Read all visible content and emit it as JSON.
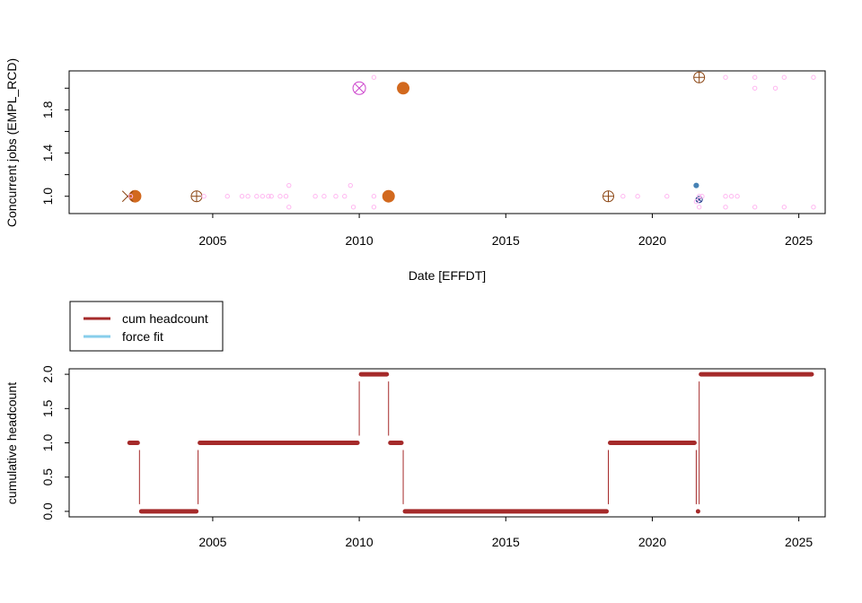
{
  "colors": {
    "orange": "#D2691E",
    "dark_orange": "#8B4513",
    "magenta": "#CC44CC",
    "pink": "#FFB6F0",
    "steel_blue": "#4682B4",
    "navy": "#1F3A8A",
    "brown": "#A52A2A",
    "sky_blue": "#87CEEB"
  },
  "chart_data": [
    {
      "type": "scatter",
      "title": "",
      "xlabel": "Date [EFFDT]",
      "ylabel": "Concurrent jobs (EMPL_RCD)",
      "xlim": [
        2000.1,
        2025.9
      ],
      "ylim": [
        0.84,
        2.16
      ],
      "xticks": [
        2005,
        2010,
        2015,
        2020,
        2025
      ],
      "xtick_labels": [
        "2005",
        "2010",
        "2015",
        "2020",
        "2025"
      ],
      "yticks": [
        1.0,
        1.2,
        1.4,
        1.6,
        1.8,
        2.0
      ],
      "ytick_labels": [
        "1.0",
        "",
        "1.4",
        "",
        "1.8",
        ""
      ],
      "series": [
        {
          "name": "orange filled circles",
          "marker": "filled-circle-large",
          "color": "orange",
          "points": [
            [
              2002.35,
              1.0
            ],
            [
              2011.0,
              1.0
            ],
            [
              2011.5,
              2.0
            ]
          ]
        },
        {
          "name": "circle plus markers",
          "marker": "circle-plus",
          "color": "dark_orange",
          "points": [
            [
              2004.45,
              1.0
            ],
            [
              2018.5,
              1.0
            ],
            [
              2021.6,
              2.1
            ]
          ]
        },
        {
          "name": "cross marker",
          "marker": "x",
          "color": "dark_orange",
          "points": [
            [
              2002.1,
              1.0
            ]
          ]
        },
        {
          "name": "magenta circle cross",
          "marker": "circle-x",
          "color": "magenta",
          "points": [
            [
              2010.0,
              2.0
            ]
          ]
        },
        {
          "name": "steel blue dot",
          "marker": "filled-circle-small",
          "color": "steel_blue",
          "points": [
            [
              2021.5,
              1.1
            ]
          ]
        },
        {
          "name": "navy circle cross",
          "marker": "circle-x-small",
          "color": "navy",
          "points": [
            [
              2021.6,
              0.97
            ]
          ]
        },
        {
          "name": "pink small open circles",
          "marker": "open-circle-small",
          "color": "pink",
          "points": [
            [
              2002.2,
              1.0
            ],
            [
              2004.7,
              1.0
            ],
            [
              2005.5,
              1.0
            ],
            [
              2006.0,
              1.0
            ],
            [
              2006.2,
              1.0
            ],
            [
              2006.5,
              1.0
            ],
            [
              2006.7,
              1.0
            ],
            [
              2006.9,
              1.0
            ],
            [
              2007.0,
              1.0
            ],
            [
              2007.3,
              1.0
            ],
            [
              2007.5,
              1.0
            ],
            [
              2007.6,
              1.1
            ],
            [
              2007.6,
              0.9
            ],
            [
              2008.5,
              1.0
            ],
            [
              2008.8,
              1.0
            ],
            [
              2009.2,
              1.0
            ],
            [
              2009.5,
              1.0
            ],
            [
              2009.7,
              1.1
            ],
            [
              2009.8,
              0.9
            ],
            [
              2010.5,
              2.1
            ],
            [
              2010.5,
              1.0
            ],
            [
              2010.5,
              0.9
            ],
            [
              2019.0,
              1.0
            ],
            [
              2019.5,
              1.0
            ],
            [
              2020.5,
              1.0
            ],
            [
              2021.5,
              0.95
            ],
            [
              2021.6,
              1.0
            ],
            [
              2021.6,
              0.9
            ],
            [
              2021.7,
              1.0
            ],
            [
              2022.5,
              1.0
            ],
            [
              2022.5,
              0.9
            ],
            [
              2022.5,
              2.1
            ],
            [
              2022.7,
              1.0
            ],
            [
              2022.9,
              1.0
            ],
            [
              2023.5,
              2.1
            ],
            [
              2023.5,
              2.0
            ],
            [
              2023.5,
              0.9
            ],
            [
              2024.2,
              2.0
            ],
            [
              2024.5,
              2.1
            ],
            [
              2024.5,
              0.9
            ],
            [
              2025.5,
              2.1
            ],
            [
              2025.5,
              0.9
            ]
          ]
        }
      ]
    },
    {
      "type": "step",
      "title": "",
      "xlabel": "",
      "ylabel": "cumulative headcount",
      "xlim": [
        2000.1,
        2025.9
      ],
      "ylim": [
        -0.08,
        2.08
      ],
      "xticks": [
        2005,
        2010,
        2015,
        2020,
        2025
      ],
      "xtick_labels": [
        "2005",
        "2010",
        "2015",
        "2020",
        "2025"
      ],
      "yticks": [
        0.0,
        0.5,
        1.0,
        1.5,
        2.0
      ],
      "ytick_labels": [
        "0.0",
        "0.5",
        "1.0",
        "1.5",
        "2.0"
      ],
      "legend": {
        "position": "top-left",
        "entries": [
          {
            "label": "cum headcount",
            "color": "brown"
          },
          {
            "label": "force fit",
            "color": "sky_blue"
          }
        ]
      },
      "series": [
        {
          "name": "cum headcount",
          "color": "brown",
          "segments": [
            {
              "x": [
                2002.1,
                2002.5
              ],
              "y": 1
            },
            {
              "x": [
                2002.5,
                2004.5
              ],
              "y": 0
            },
            {
              "x": [
                2004.5,
                2010.0
              ],
              "y": 1
            },
            {
              "x": [
                2010.0,
                2011.0
              ],
              "y": 2
            },
            {
              "x": [
                2011.0,
                2011.5
              ],
              "y": 1
            },
            {
              "x": [
                2011.5,
                2018.5
              ],
              "y": 0
            },
            {
              "x": [
                2018.5,
                2021.5
              ],
              "y": 1
            },
            {
              "x": [
                2021.5,
                2021.6
              ],
              "y": 0
            },
            {
              "x": [
                2021.6,
                2025.5
              ],
              "y": 2
            }
          ],
          "transitions": [
            2002.5,
            2004.5,
            2010.0,
            2011.0,
            2011.5,
            2018.5,
            2021.5,
            2021.6
          ]
        }
      ]
    }
  ]
}
